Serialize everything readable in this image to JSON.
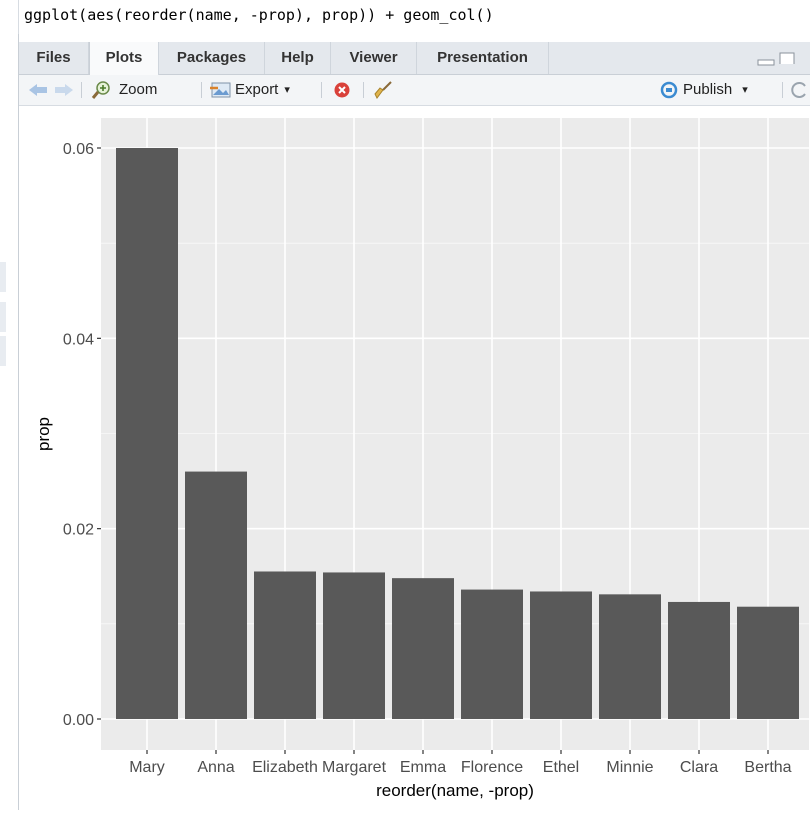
{
  "console": {
    "command": "ggplot(aes(reorder(name, -prop), prop)) + geom_col()"
  },
  "tabs": [
    {
      "label": "Files",
      "active": false
    },
    {
      "label": "Plots",
      "active": true
    },
    {
      "label": "Packages",
      "active": false
    },
    {
      "label": "Help",
      "active": false
    },
    {
      "label": "Viewer",
      "active": false
    },
    {
      "label": "Presentation",
      "active": false
    }
  ],
  "toolbar": {
    "zoom_label": "Zoom",
    "export_label": "Export",
    "publish_label": "Publish",
    "dropdown_glyph": "▾",
    "icons": [
      "back-arrow-icon",
      "forward-arrow-icon",
      "zoom-icon",
      "export-icon",
      "remove-plot-icon",
      "broom-icon",
      "publish-icon",
      "refresh-icon"
    ]
  },
  "colors": {
    "panel_bg": "#ebebeb",
    "bar_fill": "#595959",
    "grid": "#ffffff",
    "tab_bar": "#e4e8ed"
  },
  "chart_data": {
    "type": "bar",
    "xlabel": "reorder(name, -prop)",
    "ylabel": "prop",
    "categories": [
      "Mary",
      "Anna",
      "Elizabeth",
      "Margaret",
      "Emma",
      "Florence",
      "Ethel",
      "Minnie",
      "Clara",
      "Bertha"
    ],
    "values": [
      0.06,
      0.026,
      0.0155,
      0.0154,
      0.0148,
      0.0136,
      0.0134,
      0.0131,
      0.0123,
      0.0118
    ],
    "yticks": [
      "0.00",
      "0.02",
      "0.04",
      "0.06"
    ],
    "ytick_values": [
      0,
      0.02,
      0.04,
      0.06
    ],
    "ylim": [
      0,
      0.063
    ],
    "grid": true
  }
}
